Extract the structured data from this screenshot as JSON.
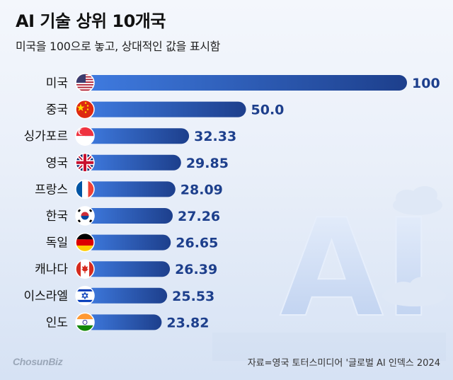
{
  "title": "AI 기술 상위 10개국",
  "subtitle": "미국을 100으로 놓고, 상대적인 값을 표시함",
  "source": "자료=영국 토터스미디어 '글로벌 AI 인덱스 2024",
  "logo": {
    "part1": "Chosun",
    "part2": "Biz"
  },
  "background_text": "AI",
  "colors": {
    "bar_dark": "#1d3f8c",
    "bar_light": "#3f7be0",
    "value_text": "#1d3f8c"
  },
  "chart_data": {
    "type": "bar",
    "orientation": "horizontal",
    "title": "AI 기술 상위 10개국",
    "subtitle": "미국을 100으로 놓고, 상대적인 값을 표시함",
    "categories": [
      "미국",
      "중국",
      "싱가포르",
      "영국",
      "프랑스",
      "한국",
      "독일",
      "캐나다",
      "이스라엘",
      "인도"
    ],
    "value_labels": [
      "100",
      "50.0",
      "32.33",
      "29.85",
      "28.09",
      "27.26",
      "26.65",
      "26.39",
      "25.53",
      "23.82"
    ],
    "values": [
      100,
      50.0,
      32.33,
      29.85,
      28.09,
      27.26,
      26.65,
      26.39,
      25.53,
      23.82
    ],
    "flags": [
      "us-flag-icon",
      "china-flag-icon",
      "singapore-flag-icon",
      "uk-flag-icon",
      "france-flag-icon",
      "korea-flag-icon",
      "germany-flag-icon",
      "canada-flag-icon",
      "israel-flag-icon",
      "india-flag-icon"
    ],
    "xlim": [
      0,
      100
    ],
    "grid": false,
    "legend": "none"
  }
}
